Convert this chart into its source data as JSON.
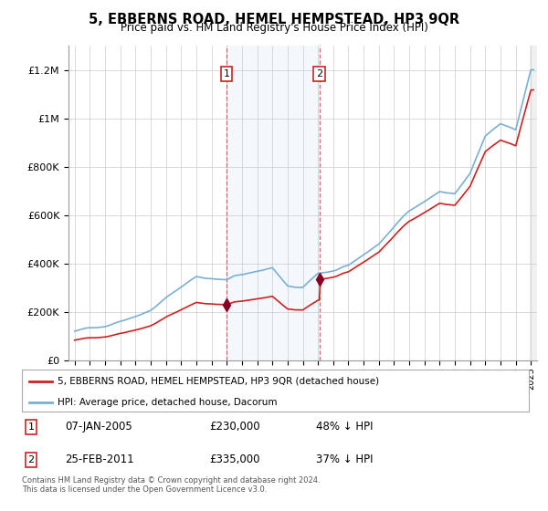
{
  "title": "5, EBBERNS ROAD, HEMEL HEMPSTEAD, HP3 9QR",
  "subtitle": "Price paid vs. HM Land Registry's House Price Index (HPI)",
  "hpi_color": "#7ab0d4",
  "price_color": "#cc2222",
  "marker_color": "#880022",
  "legend_label1": "5, EBBERNS ROAD, HEMEL HEMPSTEAD, HP3 9QR (detached house)",
  "legend_label2": "HPI: Average price, detached house, Dacorum",
  "footer": "Contains HM Land Registry data © Crown copyright and database right 2024.\nThis data is licensed under the Open Government Licence v3.0.",
  "ylim": [
    0,
    1300000
  ],
  "yticks": [
    0,
    200000,
    400000,
    600000,
    800000,
    1000000,
    1200000
  ],
  "background_color": "#ffffff",
  "t1_year": 2005.04,
  "t2_year": 2011.15,
  "t1_price": 230000,
  "t2_price": 335000
}
